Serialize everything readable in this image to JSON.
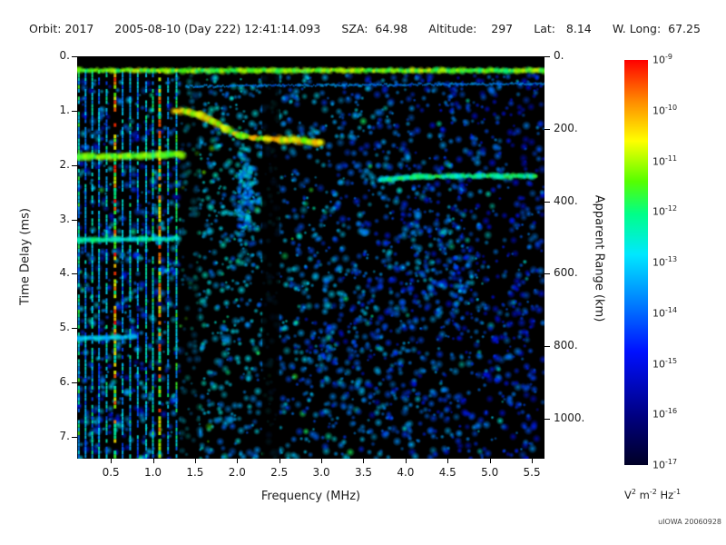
{
  "header": {
    "items": [
      {
        "text": "Orbit: 2017"
      },
      {
        "text": "2005-08-10 (Day 222) 12:41:14.093"
      },
      {
        "text": "SZA:  64.98"
      },
      {
        "text": "Altitude:    297"
      },
      {
        "text": "Lat:   8.14"
      },
      {
        "text": "W. Long:  67.25"
      }
    ]
  },
  "colorbar": {
    "tick_exponents": [
      -9,
      -10,
      -11,
      -12,
      -13,
      -14,
      -15,
      -16,
      -17
    ],
    "unit": "V^2 m^-2 Hz^-1",
    "credit": "uIOWA 20060928"
  },
  "chart_data": {
    "type": "heatmap",
    "xlabel": "Frequency (MHz)",
    "ylabel": "Time Delay (ms)",
    "y2label": "Apparent Range (km)",
    "xlim": [
      0.1,
      5.65
    ],
    "ylim": [
      0,
      7.4
    ],
    "y2lim": [
      0,
      1110
    ],
    "x_ticks": [
      "0.5",
      "1.0",
      "1.5",
      "2.0",
      "2.5",
      "3.0",
      "3.5",
      "4.0",
      "4.5",
      "5.0",
      "5.5"
    ],
    "y_ticks": [
      "0.",
      "1.",
      "2.",
      "3.",
      "4.",
      "5.",
      "6.",
      "7."
    ],
    "y2_ticks": [
      "0.",
      "200.",
      "400.",
      "600.",
      "800.",
      "1000."
    ],
    "z_unit": "V^2 m^-2 Hz^-1",
    "z_range_exponents": [
      -17,
      -9
    ],
    "colormap": [
      {
        "v": 0.0,
        "c": "#000026"
      },
      {
        "v": 0.12,
        "c": "#000080"
      },
      {
        "v": 0.28,
        "c": "#0010ff"
      },
      {
        "v": 0.42,
        "c": "#0090ff"
      },
      {
        "v": 0.52,
        "c": "#00e8ff"
      },
      {
        "v": 0.62,
        "c": "#00ff88"
      },
      {
        "v": 0.7,
        "c": "#55ff00"
      },
      {
        "v": 0.8,
        "c": "#ffff00"
      },
      {
        "v": 0.9,
        "c": "#ff8800"
      },
      {
        "v": 1.0,
        "c": "#ff0000"
      }
    ],
    "features": [
      {
        "name": "background-noise",
        "kind": "noise",
        "count": 3000
      },
      {
        "name": "noise-cluster-midband",
        "kind": "cluster",
        "center": [
          2.1,
          2.6
        ],
        "sigma": [
          0.12,
          0.9
        ],
        "count": 160,
        "v": 0.45
      },
      {
        "name": "noise-cluster-right",
        "kind": "cluster",
        "center": [
          4.5,
          4.0
        ],
        "sigma": [
          0.5,
          1.4
        ],
        "count": 140,
        "v": 0.4
      },
      {
        "name": "noise-cluster-low",
        "kind": "cluster",
        "center": [
          3.2,
          5.5
        ],
        "sigma": [
          0.8,
          1.2
        ],
        "count": 120,
        "v": 0.35
      },
      {
        "name": "attenuation-gap-1",
        "kind": "dark-column",
        "f_range": [
          1.33,
          1.55
        ],
        "alpha": 0.5
      },
      {
        "name": "attenuation-gap-2",
        "kind": "dark-column",
        "f_range": [
          2.3,
          2.5
        ],
        "alpha": 0.85
      },
      {
        "name": "top-black-strip",
        "kind": "dark-row",
        "t_range": [
          0,
          0.12
        ],
        "alpha": 1
      },
      {
        "name": "plasma-harmonic-lines",
        "kind": "vlines",
        "t_range": [
          0.25,
          7.4
        ],
        "lines": [
          {
            "f": 0.12,
            "v": 0.6
          },
          {
            "f": 0.2,
            "v": 0.5
          },
          {
            "f": 0.28,
            "v": 0.55
          },
          {
            "f": 0.36,
            "v": 0.5
          },
          {
            "f": 0.45,
            "v": 0.55
          },
          {
            "f": 0.55,
            "v": 0.88,
            "w": 3
          },
          {
            "f": 0.64,
            "v": 0.5
          },
          {
            "f": 0.73,
            "v": 0.55
          },
          {
            "f": 0.82,
            "v": 0.5
          },
          {
            "f": 0.92,
            "v": 0.55
          },
          {
            "f": 1.0,
            "v": 0.6
          },
          {
            "f": 1.08,
            "v": 0.85,
            "w": 3
          },
          {
            "f": 1.18,
            "v": 0.55
          },
          {
            "f": 1.28,
            "v": 0.6
          }
        ]
      },
      {
        "name": "surface-reflection-band",
        "kind": "trace",
        "points": [
          [
            0.1,
            0.26
          ],
          [
            5.65,
            0.26
          ]
        ],
        "v": 0.72,
        "w": 4
      },
      {
        "name": "faint-second-band",
        "kind": "trace",
        "points": [
          [
            1.4,
            0.55
          ],
          [
            5.65,
            0.5
          ]
        ],
        "v": 0.42,
        "w": 2
      },
      {
        "name": "ionospheric-echo-trace",
        "kind": "trace",
        "points": [
          [
            1.25,
            1.0
          ],
          [
            1.4,
            1.02
          ],
          [
            1.55,
            1.08
          ],
          [
            1.7,
            1.18
          ],
          [
            1.85,
            1.32
          ],
          [
            2.0,
            1.44
          ],
          [
            2.2,
            1.5
          ],
          [
            2.5,
            1.53
          ],
          [
            2.8,
            1.55
          ],
          [
            3.0,
            1.6
          ]
        ],
        "v": 0.8,
        "w": 5
      },
      {
        "name": "oblique-echo-trace",
        "kind": "trace",
        "points": [
          [
            3.7,
            2.27
          ],
          [
            4.1,
            2.22
          ],
          [
            4.6,
            2.2
          ],
          [
            5.1,
            2.2
          ],
          [
            5.55,
            2.2
          ]
        ],
        "v": 0.62,
        "w": 4
      },
      {
        "name": "low-freq-band-1",
        "kind": "trace",
        "points": [
          [
            0.1,
            1.85
          ],
          [
            0.7,
            1.84
          ],
          [
            1.35,
            1.8
          ]
        ],
        "v": 0.72,
        "w": 5
      },
      {
        "name": "low-freq-band-2",
        "kind": "trace",
        "points": [
          [
            0.1,
            3.38
          ],
          [
            1.3,
            3.35
          ]
        ],
        "v": 0.58,
        "w": 4
      },
      {
        "name": "low-freq-band-3",
        "kind": "trace",
        "points": [
          [
            0.1,
            5.2
          ],
          [
            0.8,
            5.15
          ]
        ],
        "v": 0.5,
        "w": 4
      }
    ]
  }
}
